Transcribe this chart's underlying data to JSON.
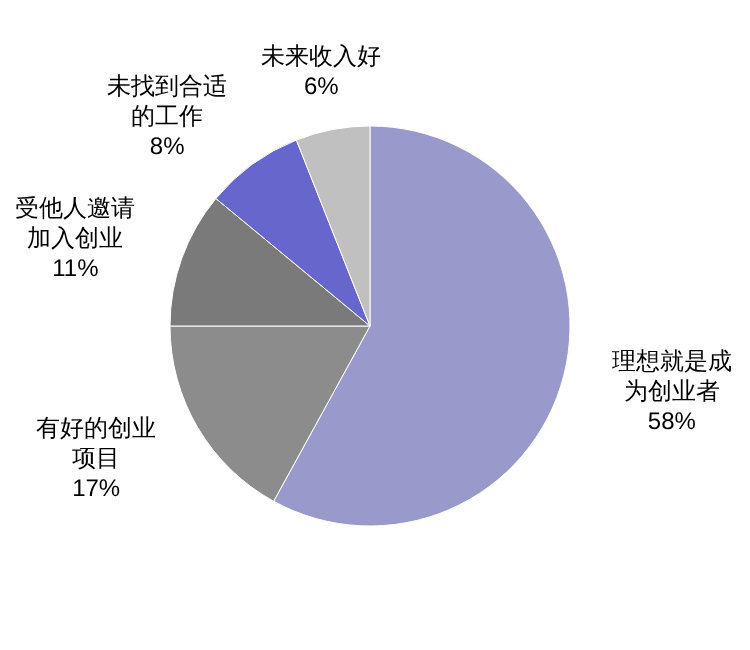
{
  "chart_data": {
    "type": "pie",
    "categories": [
      "理想就是成为创业者",
      "有好的创业项目",
      "受他人邀请加入创业",
      "未找到合适的工作",
      "未来收入好"
    ],
    "value_labels": [
      "58%",
      "17%",
      "11%",
      "8%",
      "6%"
    ],
    "values": [
      58,
      17,
      11,
      8,
      6
    ],
    "colors": [
      "#9999cc",
      "#8c8c8c",
      "#7a7a7a",
      "#6666cc",
      "#c0c0c0"
    ]
  }
}
